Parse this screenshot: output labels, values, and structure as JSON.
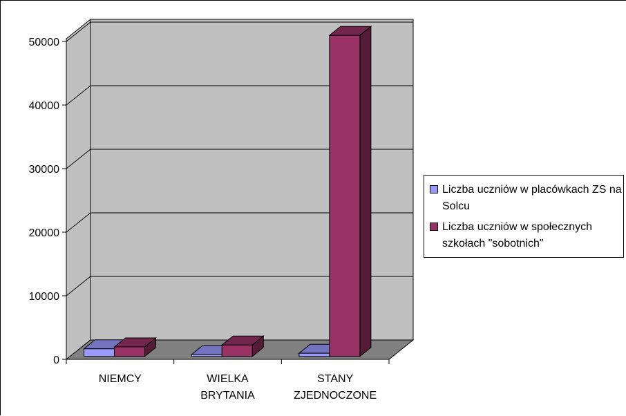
{
  "chart_data": {
    "type": "bar",
    "title": "",
    "xlabel": "",
    "ylabel": "",
    "categories": [
      "NIEMCY",
      "WIELKA\nBRYTANIA",
      "STANY\nZJEDNOCZONE"
    ],
    "series": [
      {
        "name": "Liczba uczniów w placówkach ZS na Solcu",
        "color": "#9999FF",
        "values": [
          1200,
          300,
          500
        ]
      },
      {
        "name": "Liczba uczniów w społecznych szkołach \"sobotnich\"",
        "color": "#993366",
        "values": [
          1500,
          1800,
          50500
        ]
      }
    ],
    "ylim": [
      0,
      50000
    ],
    "yticks": [
      "0",
      "10000",
      "20000",
      "30000",
      "40000",
      "50000"
    ],
    "grid": true,
    "legend": "right",
    "style": "3d-clustered-column",
    "wall_color": "#C0C0C0",
    "floor_color": "#808080"
  }
}
